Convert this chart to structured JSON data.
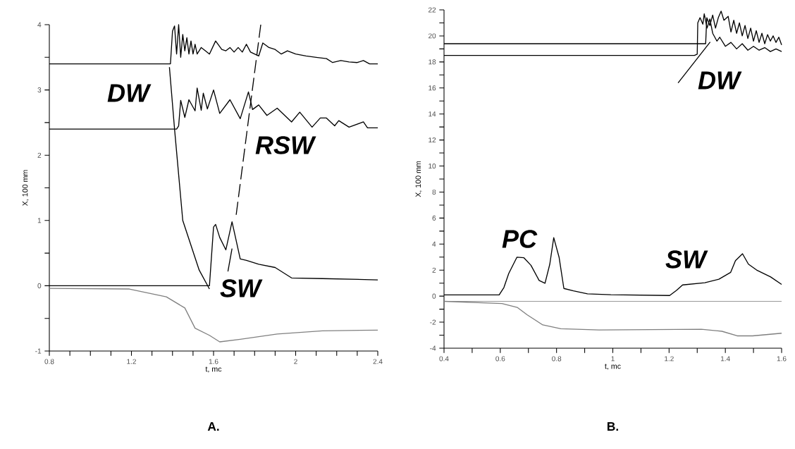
{
  "chart_data": [
    {
      "type": "line",
      "title": "A.",
      "xlabel": "t, mc",
      "ylabel": "X, 100 mm",
      "xlim": [
        0.8,
        2.4
      ],
      "ylim": [
        -1,
        4
      ],
      "xticks": [
        0.8,
        {
          "value": 0.9,
          "label": null
        },
        {
          "value": 1.0,
          "label": null
        },
        {
          "value": 1.1,
          "label": null
        },
        1.2,
        {
          "value": 1.3,
          "label": null
        },
        {
          "value": 1.4,
          "label": null
        },
        {
          "value": 1.5,
          "label": null
        },
        1.6,
        {
          "value": 1.7,
          "label": null
        },
        {
          "value": 1.8,
          "label": null
        },
        {
          "value": 1.9,
          "label": null
        },
        2,
        {
          "value": 2.1,
          "label": null
        },
        {
          "value": 2.2,
          "label": null
        },
        {
          "value": 2.3,
          "label": null
        },
        2.4
      ],
      "yticks": [
        -1,
        {
          "value": -0.5,
          "label": null
        },
        0,
        {
          "value": 0.5,
          "label": null
        },
        1,
        {
          "value": 1.5,
          "label": null
        },
        2,
        {
          "value": 2.5,
          "label": null
        },
        3,
        {
          "value": 3.5,
          "label": null
        },
        4
      ],
      "series": [
        {
          "color": "#000000",
          "x": [
            0.8,
            1.39,
            1.4,
            1.41,
            1.42,
            1.43,
            1.44,
            1.45,
            1.46,
            1.47,
            1.48,
            1.49,
            1.5,
            1.51,
            1.52,
            1.54,
            1.56,
            1.58,
            1.61,
            1.64,
            1.66,
            1.68,
            1.7,
            1.72,
            1.74,
            1.76,
            1.78,
            1.8,
            1.82,
            1.84,
            1.87,
            1.9,
            1.93,
            1.96,
            2.0,
            2.05,
            2.1,
            2.15,
            2.18,
            2.22,
            2.26,
            2.3,
            2.33,
            2.36,
            2.4
          ],
          "values": [
            3.4,
            3.4,
            3.9,
            3.98,
            3.55,
            4.0,
            3.5,
            3.85,
            3.6,
            3.8,
            3.55,
            3.75,
            3.55,
            3.7,
            3.55,
            3.65,
            3.6,
            3.55,
            3.75,
            3.62,
            3.6,
            3.65,
            3.58,
            3.65,
            3.58,
            3.7,
            3.58,
            3.55,
            3.52,
            3.72,
            3.65,
            3.62,
            3.55,
            3.6,
            3.55,
            3.52,
            3.5,
            3.48,
            3.42,
            3.45,
            3.43,
            3.42,
            3.45,
            3.4,
            3.4
          ]
        },
        {
          "color": "#000000",
          "x": [
            0.8,
            1.42,
            1.43,
            1.44,
            1.46,
            1.48,
            1.51,
            1.52,
            1.54,
            1.55,
            1.57,
            1.6,
            1.63,
            1.68,
            1.73,
            1.77,
            1.79,
            1.82,
            1.86,
            1.91,
            1.98,
            2.02,
            2.08,
            2.12,
            2.15,
            2.19,
            2.21,
            2.26,
            2.33,
            2.35,
            2.4
          ],
          "values": [
            2.4,
            2.4,
            2.45,
            2.84,
            2.58,
            2.85,
            2.68,
            3.03,
            2.69,
            2.95,
            2.71,
            3.0,
            2.64,
            2.85,
            2.56,
            2.97,
            2.7,
            2.77,
            2.61,
            2.72,
            2.51,
            2.66,
            2.43,
            2.57,
            2.57,
            2.45,
            2.53,
            2.43,
            2.51,
            2.42,
            2.42
          ]
        },
        {
          "color": "#000000",
          "x": [
            0.8,
            1.58,
            1.6,
            1.61,
            1.63,
            1.66,
            1.69,
            1.73,
            1.76,
            1.82,
            1.9,
            1.98,
            2.13,
            2.4
          ],
          "values": [
            0,
            0,
            0.9,
            0.94,
            0.74,
            0.55,
            0.98,
            0.41,
            0.39,
            0.33,
            0.28,
            0.12,
            0.11,
            0.09
          ]
        },
        {
          "color": "#808080",
          "x": [
            0.8,
            1.19,
            1.37,
            1.46,
            1.51,
            1.58,
            1.63,
            1.73,
            1.91,
            2.13,
            2.4
          ],
          "values": [
            -0.04,
            -0.05,
            -0.17,
            -0.34,
            -0.65,
            -0.76,
            -0.86,
            -0.82,
            -0.74,
            -0.69,
            -0.68
          ]
        },
        {
          "color": "#000000",
          "x": [
            1.385,
            1.41,
            1.45,
            1.53,
            1.58
          ],
          "values": [
            3.35,
            2.4,
            1.0,
            0.24,
            -0.05
          ]
        },
        {
          "color": "#000000",
          "line_style": "dashed",
          "x": [
            1.83,
            1.71
          ],
          "values": [
            4.0,
            1.08
          ]
        },
        {
          "color": "#000000",
          "x": [
            1.69,
            1.67
          ],
          "values": [
            0.57,
            0.22
          ]
        }
      ],
      "annotations": [
        "DW",
        "RSW",
        "SW"
      ]
    },
    {
      "type": "line",
      "title": "B.",
      "xlabel": "t, mc",
      "ylabel": "X, 100 mm",
      "xlim": [
        0.4,
        1.6
      ],
      "ylim": [
        -4,
        22
      ],
      "xticks": [
        0.4,
        {
          "value": 0.5,
          "label": null
        },
        0.6,
        {
          "value": 0.7,
          "label": null
        },
        0.8,
        {
          "value": 0.9,
          "label": null
        },
        1,
        {
          "value": 1.1,
          "label": null
        },
        1.2,
        {
          "value": 1.3,
          "label": null
        },
        1.4,
        {
          "value": 1.5,
          "label": null
        },
        1.6
      ],
      "yticks": [
        -4,
        {
          "value": -3,
          "label": null
        },
        -2,
        {
          "value": -1,
          "label": null
        },
        0,
        {
          "value": 1,
          "label": null
        },
        2,
        {
          "value": 3,
          "label": null
        },
        4,
        {
          "value": 5,
          "label": null
        },
        6,
        {
          "value": 7,
          "label": null
        },
        8,
        {
          "value": 9,
          "label": null
        },
        10,
        {
          "value": 11,
          "label": null
        },
        12,
        {
          "value": 13,
          "label": null
        },
        14,
        {
          "value": 15,
          "label": null
        },
        16,
        {
          "value": 17,
          "label": null
        },
        18,
        {
          "value": 19,
          "label": null
        },
        20,
        {
          "value": 21,
          "label": null
        },
        22
      ],
      "series": [
        {
          "color": "#000000",
          "x": [
            0.4,
            1.33,
            1.334,
            1.345,
            1.355,
            1.365,
            1.375,
            1.385,
            1.395,
            1.41,
            1.42,
            1.43,
            1.44,
            1.45,
            1.46,
            1.47,
            1.48,
            1.49,
            1.5,
            1.51,
            1.52,
            1.53,
            1.54,
            1.55,
            1.56,
            1.57,
            1.58,
            1.59,
            1.6
          ],
          "values": [
            19.4,
            19.4,
            21.4,
            20.8,
            21.6,
            20.6,
            21.4,
            21.9,
            21.2,
            21.5,
            20.3,
            21.2,
            20.2,
            21.0,
            20.0,
            20.8,
            19.8,
            20.6,
            19.6,
            20.4,
            19.5,
            20.2,
            19.4,
            20.1,
            19.6,
            20.0,
            19.5,
            19.9,
            19.3
          ]
        },
        {
          "color": "#000000",
          "x": [
            0.4,
            1.29,
            1.3,
            1.302,
            1.31,
            1.32,
            1.325,
            1.335,
            1.345,
            1.355,
            1.37,
            1.38,
            1.4,
            1.42,
            1.44,
            1.46,
            1.48,
            1.5,
            1.52,
            1.54,
            1.56,
            1.58,
            1.6
          ],
          "values": [
            18.5,
            18.5,
            18.6,
            21.0,
            21.4,
            20.9,
            21.7,
            20.6,
            21.3,
            20.2,
            19.6,
            19.9,
            19.2,
            19.5,
            19.0,
            19.4,
            18.9,
            19.2,
            18.9,
            19.1,
            18.8,
            19.0,
            18.8
          ]
        },
        {
          "color": "#000000",
          "x": [
            0.4,
            0.596,
            0.613,
            0.63,
            0.659,
            0.684,
            0.709,
            0.738,
            0.759,
            0.776,
            0.79,
            0.809,
            0.826,
            0.86,
            0.91,
            0.993,
            1.202,
            1.227,
            1.248,
            1.327,
            1.377,
            1.419,
            1.436,
            1.461,
            1.482,
            1.511,
            1.561,
            1.6
          ],
          "values": [
            0.1,
            0.1,
            0.67,
            1.74,
            2.99,
            2.95,
            2.37,
            1.21,
            0.99,
            2.46,
            4.5,
            2.99,
            0.59,
            0.41,
            0.18,
            0.11,
            0.05,
            0.46,
            0.86,
            1.03,
            1.3,
            1.83,
            2.73,
            3.26,
            2.46,
            2.01,
            1.48,
            0.9
          ]
        },
        {
          "color": "#7f7f7f",
          "x": [
            0.4,
            0.606,
            0.66,
            0.696,
            0.751,
            0.815,
            0.951,
            1.315,
            1.388,
            1.442,
            1.497,
            1.6
          ],
          "values": [
            -0.4,
            -0.57,
            -0.86,
            -1.44,
            -2.21,
            -2.5,
            -2.6,
            -2.54,
            -2.7,
            -3.05,
            -3.05,
            -2.85
          ]
        },
        {
          "color": "#000000",
          "x": [
            1.232,
            1.346
          ],
          "values": [
            16.39,
            19.53
          ]
        }
      ],
      "ref_lines": [
        {
          "axis": "y",
          "value": -0.4,
          "color": "#999999"
        }
      ],
      "annotations": [
        "DW",
        "PC",
        "SW"
      ]
    }
  ]
}
